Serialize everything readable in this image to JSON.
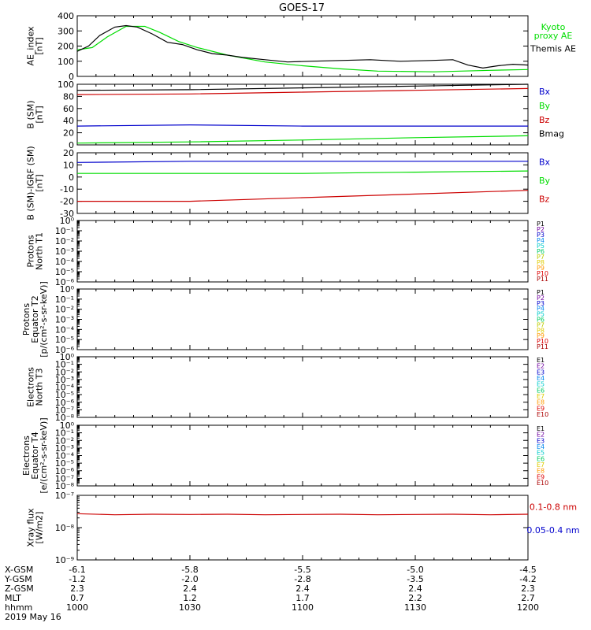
{
  "title": "GOES-17",
  "colors": {
    "black": "#000000",
    "green": "#00dd00",
    "blue": "#0000cc",
    "red": "#cc0000"
  },
  "chart_data": [
    {
      "type": "line",
      "ylabel": [
        "AE_index",
        "[nT]"
      ],
      "ylim": [
        0,
        400
      ],
      "yticks": [
        0,
        100,
        200,
        300,
        400
      ],
      "legend": [
        {
          "lines": [
            "Kyoto",
            "proxy AE"
          ],
          "color": "#00dd00"
        },
        {
          "lines": [
            "Themis AE"
          ],
          "color": "#000000"
        }
      ],
      "series": [
        {
          "name": "Kyoto proxy AE",
          "color": "#00dd00",
          "x": [
            0,
            4,
            8,
            13,
            18,
            22,
            27,
            32,
            40,
            50,
            60,
            70,
            80,
            95,
            110,
            120
          ],
          "y": [
            175,
            190,
            260,
            330,
            330,
            290,
            230,
            190,
            140,
            95,
            70,
            50,
            35,
            30,
            40,
            45
          ]
        },
        {
          "name": "Themis AE",
          "color": "#000000",
          "x": [
            0,
            3,
            6,
            10,
            13,
            16,
            20,
            24,
            28,
            32,
            36,
            40,
            44,
            50,
            56,
            62,
            70,
            78,
            86,
            94,
            100,
            104,
            108,
            112,
            116,
            120
          ],
          "y": [
            165,
            200,
            270,
            325,
            335,
            325,
            280,
            225,
            210,
            175,
            150,
            140,
            125,
            110,
            95,
            100,
            105,
            110,
            100,
            105,
            110,
            75,
            55,
            70,
            80,
            75
          ]
        }
      ]
    },
    {
      "type": "line",
      "ylabel": [
        "B (SM)",
        "[nT]"
      ],
      "ylim": [
        0,
        100
      ],
      "yticks": [
        0,
        20,
        40,
        60,
        80,
        100
      ],
      "legend": [
        {
          "lines": [
            "Bx"
          ],
          "color": "#0000cc"
        },
        {
          "lines": [
            "By"
          ],
          "color": "#00dd00"
        },
        {
          "lines": [
            "Bz"
          ],
          "color": "#cc0000"
        },
        {
          "lines": [
            "Bmag"
          ],
          "color": "#000000"
        }
      ],
      "series": [
        {
          "name": "Bx",
          "color": "#0000cc",
          "x": [
            0,
            30,
            60,
            90,
            120
          ],
          "y": [
            31,
            33,
            31,
            31,
            31
          ]
        },
        {
          "name": "By",
          "color": "#00dd00",
          "x": [
            0,
            30,
            60,
            90,
            120
          ],
          "y": [
            3,
            5,
            8,
            12,
            15
          ]
        },
        {
          "name": "Bz",
          "color": "#cc0000",
          "x": [
            0,
            30,
            60,
            90,
            120
          ],
          "y": [
            83,
            84,
            87,
            90,
            93
          ]
        },
        {
          "name": "Bmag",
          "color": "#000000",
          "x": [
            0,
            30,
            60,
            90,
            120
          ],
          "y": [
            90,
            91,
            94,
            97,
            100
          ]
        }
      ]
    },
    {
      "type": "line",
      "ylabel": [
        "B (SM)-IGRF (SM)",
        "[nT]"
      ],
      "ylim": [
        -30,
        20
      ],
      "yticks": [
        -30,
        -20,
        -10,
        0,
        10,
        20
      ],
      "legend": [
        {
          "lines": [
            "Bx"
          ],
          "color": "#0000cc"
        },
        {
          "lines": [
            "By"
          ],
          "color": "#00dd00"
        },
        {
          "lines": [
            "Bz"
          ],
          "color": "#cc0000"
        }
      ],
      "series": [
        {
          "name": "Bx",
          "color": "#0000cc",
          "x": [
            0,
            30,
            60,
            90,
            120
          ],
          "y": [
            12,
            13,
            13,
            13,
            13
          ]
        },
        {
          "name": "By",
          "color": "#00dd00",
          "x": [
            0,
            30,
            60,
            90,
            120
          ],
          "y": [
            3,
            3,
            3,
            4,
            5
          ]
        },
        {
          "name": "Bz",
          "color": "#cc0000",
          "x": [
            0,
            30,
            60,
            90,
            120
          ],
          "y": [
            -20,
            -20,
            -17,
            -14,
            -11
          ]
        }
      ]
    },
    {
      "type": "line",
      "ylabel": [
        "Protons",
        "North T1"
      ],
      "log": true,
      "yticks": [
        "10⁰",
        "10⁻¹",
        "10⁻²",
        "10⁻³",
        "10⁻⁴",
        "10⁻⁵",
        "10⁻⁶"
      ],
      "legend": [
        {
          "lines": [
            "P1"
          ],
          "color": "#000000"
        },
        {
          "lines": [
            "P2"
          ],
          "color": "#7000a0"
        },
        {
          "lines": [
            "P3"
          ],
          "color": "#0000cc"
        },
        {
          "lines": [
            "P4"
          ],
          "color": "#0088ee"
        },
        {
          "lines": [
            "P5"
          ],
          "color": "#00cccc"
        },
        {
          "lines": [
            "P6"
          ],
          "color": "#00cc66"
        },
        {
          "lines": [
            "P7"
          ],
          "color": "#bbcc00"
        },
        {
          "lines": [
            "P8"
          ],
          "color": "#ddcc00"
        },
        {
          "lines": [
            "P9"
          ],
          "color": "#ff9900"
        },
        {
          "lines": [
            "P10"
          ],
          "color": "#dd0000"
        },
        {
          "lines": [
            "P11"
          ],
          "color": "#aa0000"
        }
      ],
      "series": []
    },
    {
      "type": "line",
      "ylabel": [
        "Protons",
        "Equator T2",
        "[p/(cm²-s-sr-keV)]"
      ],
      "log": true,
      "yticks": [
        "10⁰",
        "10⁻¹",
        "10⁻²",
        "10⁻³",
        "10⁻⁴",
        "10⁻⁵",
        "10⁻⁶"
      ],
      "legend": [
        {
          "lines": [
            "P1"
          ],
          "color": "#000000"
        },
        {
          "lines": [
            "P2"
          ],
          "color": "#7000a0"
        },
        {
          "lines": [
            "P3"
          ],
          "color": "#0000cc"
        },
        {
          "lines": [
            "P4"
          ],
          "color": "#0088ee"
        },
        {
          "lines": [
            "P5"
          ],
          "color": "#00cccc"
        },
        {
          "lines": [
            "P6"
          ],
          "color": "#00cc66"
        },
        {
          "lines": [
            "P7"
          ],
          "color": "#bbcc00"
        },
        {
          "lines": [
            "P8"
          ],
          "color": "#ddcc00"
        },
        {
          "lines": [
            "P9"
          ],
          "color": "#ff9900"
        },
        {
          "lines": [
            "P10"
          ],
          "color": "#dd0000"
        },
        {
          "lines": [
            "P11"
          ],
          "color": "#aa0000"
        }
      ],
      "series": []
    },
    {
      "type": "line",
      "ylabel": [
        "Electrons",
        "North T3"
      ],
      "log": true,
      "yticks": [
        "10⁰",
        "10⁻¹",
        "10⁻²",
        "10⁻³",
        "10⁻⁴",
        "10⁻⁵",
        "10⁻⁶",
        "10⁻⁷",
        "10⁻⁸"
      ],
      "legend": [
        {
          "lines": [
            "E1"
          ],
          "color": "#000000"
        },
        {
          "lines": [
            "E2"
          ],
          "color": "#7000a0"
        },
        {
          "lines": [
            "E3"
          ],
          "color": "#0000cc"
        },
        {
          "lines": [
            "E4"
          ],
          "color": "#0088ee"
        },
        {
          "lines": [
            "E5"
          ],
          "color": "#00cccc"
        },
        {
          "lines": [
            "E6"
          ],
          "color": "#00cc66"
        },
        {
          "lines": [
            "E7"
          ],
          "color": "#ddcc00"
        },
        {
          "lines": [
            "E8"
          ],
          "color": "#ff9900"
        },
        {
          "lines": [
            "E9"
          ],
          "color": "#dd0000"
        },
        {
          "lines": [
            "E10"
          ],
          "color": "#aa0000"
        }
      ],
      "series": []
    },
    {
      "type": "line",
      "ylabel": [
        "Electrons",
        "Equator T4",
        "[e/(cm²-s-sr-keV)]"
      ],
      "log": true,
      "yticks": [
        "10⁰",
        "10⁻¹",
        "10⁻²",
        "10⁻³",
        "10⁻⁴",
        "10⁻⁵",
        "10⁻⁶",
        "10⁻⁷",
        "10⁻⁸"
      ],
      "legend": [
        {
          "lines": [
            "E1"
          ],
          "color": "#000000"
        },
        {
          "lines": [
            "E2"
          ],
          "color": "#7000a0"
        },
        {
          "lines": [
            "E3"
          ],
          "color": "#0000cc"
        },
        {
          "lines": [
            "E4"
          ],
          "color": "#0088ee"
        },
        {
          "lines": [
            "E5"
          ],
          "color": "#00cccc"
        },
        {
          "lines": [
            "E6"
          ],
          "color": "#00cc66"
        },
        {
          "lines": [
            "E7"
          ],
          "color": "#ddcc00"
        },
        {
          "lines": [
            "E8"
          ],
          "color": "#ff9900"
        },
        {
          "lines": [
            "E9"
          ],
          "color": "#dd0000"
        },
        {
          "lines": [
            "E10"
          ],
          "color": "#aa0000"
        }
      ],
      "series": []
    },
    {
      "type": "line",
      "ylabel": [
        "Xray flux",
        "[W/m2]"
      ],
      "log": true,
      "ylog": [
        -9,
        -7
      ],
      "yticks": [
        "10⁻⁷",
        "10⁻⁸",
        "10⁻⁹"
      ],
      "legend": [
        {
          "lines": [
            "0.1-0.8 nm"
          ],
          "color": "#cc0000"
        },
        {
          "lines": [
            "0.05-0.4 nm"
          ],
          "color": "#0000cc"
        }
      ],
      "series": [
        {
          "name": "0.1-0.8 nm",
          "color": "#cc0000",
          "x": [
            0,
            10,
            20,
            30,
            40,
            50,
            60,
            70,
            80,
            90,
            100,
            110,
            120
          ],
          "y": [
            2.7e-08,
            2.5e-08,
            2.6e-08,
            2.55e-08,
            2.6e-08,
            2.5e-08,
            2.55e-08,
            2.6e-08,
            2.5e-08,
            2.55e-08,
            2.6e-08,
            2.5e-08,
            2.6e-08
          ]
        }
      ]
    }
  ],
  "axis_table": {
    "rows": [
      {
        "label": "X-GSM",
        "values": [
          "-6.1",
          "-5.8",
          "-5.5",
          "-5.0",
          "-4.5"
        ]
      },
      {
        "label": "Y-GSM",
        "values": [
          "-1.2",
          "-2.0",
          "-2.8",
          "-3.5",
          "-4.2"
        ]
      },
      {
        "label": "Z-GSM",
        "values": [
          "2.3",
          "2.4",
          "2.4",
          "2.4",
          "2.3"
        ]
      },
      {
        "label": "MLT",
        "values": [
          "0.7",
          "1.2",
          "1.7",
          "2.2",
          "2.7"
        ]
      },
      {
        "label": "hhmm",
        "values": [
          "1000",
          "1030",
          "1100",
          "1130",
          "1200"
        ]
      }
    ],
    "date": "2019 May 16"
  }
}
